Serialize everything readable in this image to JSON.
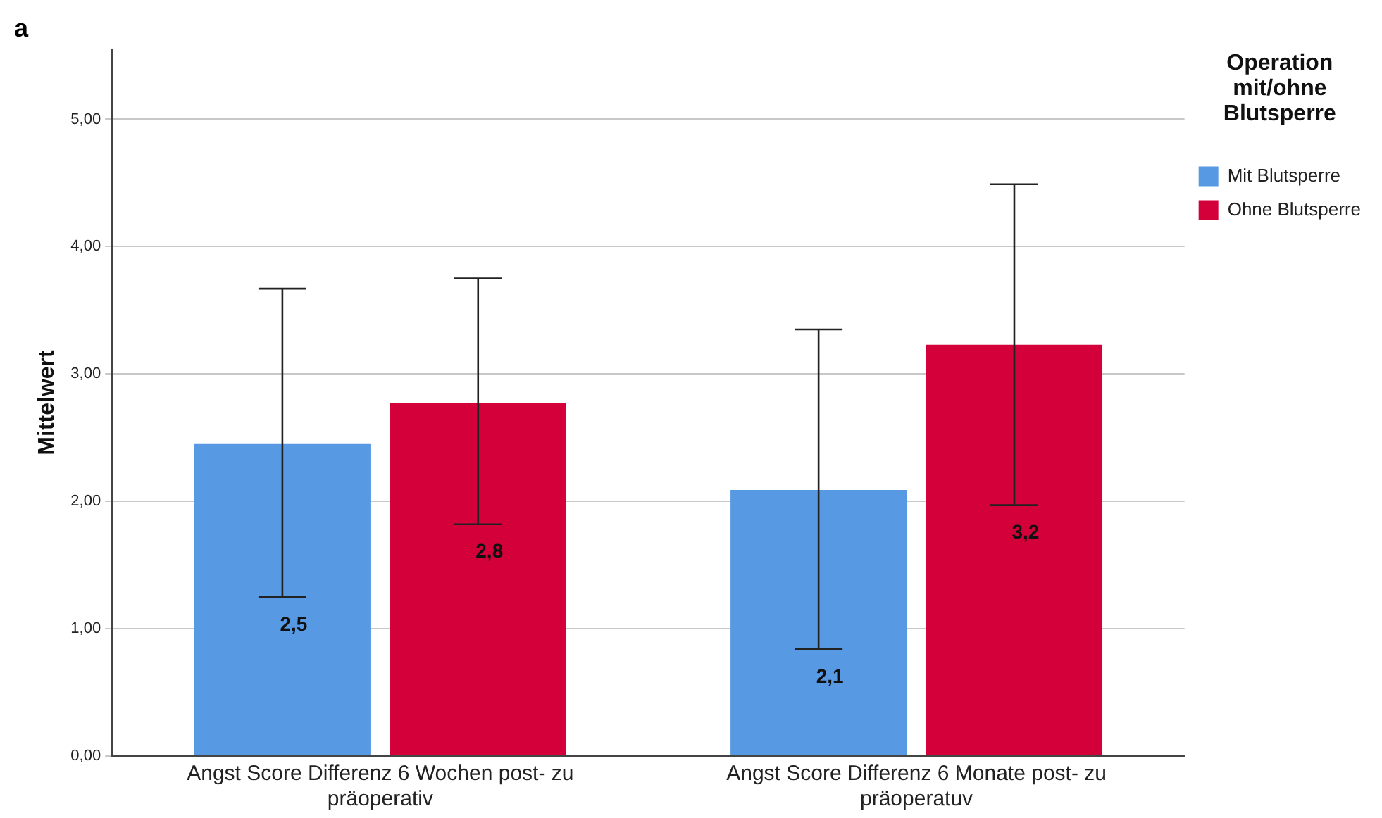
{
  "chart_data": {
    "type": "bar",
    "ylabel": "Mittelwert",
    "legend_title": "Operation mit/ohne Blutsperre",
    "legend": "top right",
    "grid": "y",
    "annotations": [
      "a"
    ],
    "categories": [
      "Angst Score Differenz 6 Wochen post- zu präoperativ",
      "Angst Score Differenz 6 Monate post- zu präoperatuv"
    ],
    "ylim": [
      0,
      5.55
    ],
    "yticks": [
      {
        "value": 0,
        "label": "0,00"
      },
      {
        "value": 1,
        "label": "1,00"
      },
      {
        "value": 2,
        "label": "2,00"
      },
      {
        "value": 3,
        "label": "3,00"
      },
      {
        "value": 4,
        "label": "4,00"
      },
      {
        "value": 5,
        "label": "5,00"
      }
    ],
    "series": [
      {
        "name": "Mit Blutsperre",
        "color": "#5899e3",
        "values": [
          2.45,
          2.09
        ],
        "errors": [
          [
            1.25,
            3.67
          ],
          [
            0.84,
            3.35
          ]
        ],
        "value_labels": [
          "2,5",
          "2,1"
        ]
      },
      {
        "name": "Ohne Blutsperre",
        "color": "#d4003a",
        "values": [
          2.77,
          3.23
        ],
        "errors": [
          [
            1.82,
            3.75
          ],
          [
            1.97,
            4.49
          ]
        ],
        "value_labels": [
          "2,8",
          "3,2"
        ]
      }
    ]
  }
}
